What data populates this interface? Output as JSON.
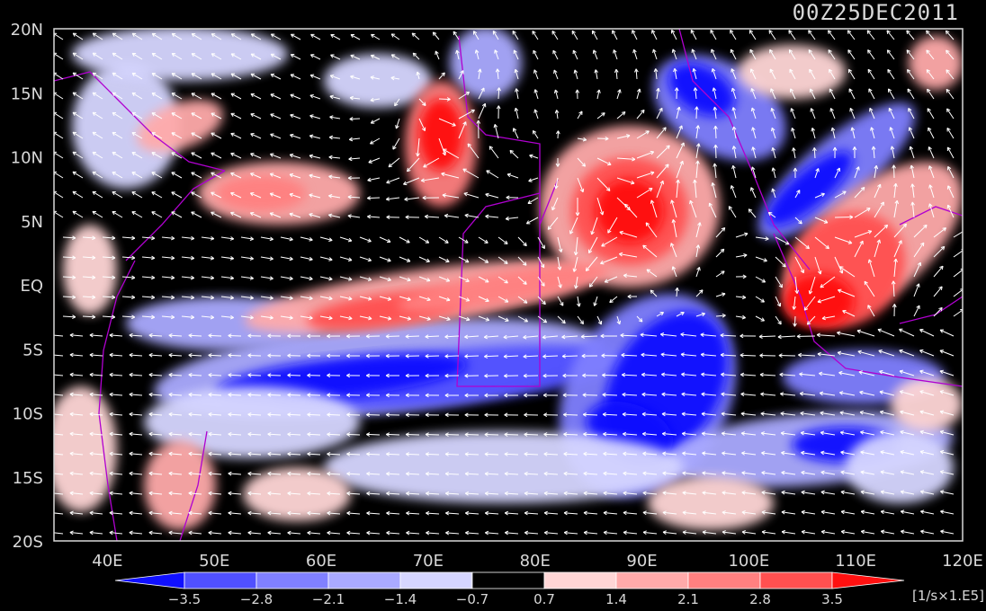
{
  "timestamp": "00Z25DEC2011",
  "units": "[1/s×1.E5]",
  "lon_labels": [
    "40E",
    "50E",
    "60E",
    "70E",
    "80E",
    "90E",
    "100E",
    "110E",
    "120E"
  ],
  "lat_labels": [
    "20N",
    "15N",
    "10N",
    "5N",
    "EQ",
    "5S",
    "10S",
    "15S",
    "20S"
  ],
  "colorbar": {
    "labels": [
      "−3.5",
      "−2.8",
      "−2.1",
      "−1.4",
      "−0.7",
      "0.7",
      "1.4",
      "2.1",
      "2.8",
      "3.5"
    ],
    "colors": [
      "#1010ff",
      "#5050ff",
      "#8080ff",
      "#aaaaff",
      "#d6d6ff",
      "#000000",
      "#ffd6d6",
      "#ffaaaa",
      "#ff8080",
      "#ff5050",
      "#ff1010"
    ]
  },
  "map_data": {
    "type": "vorticity_contour_with_wind_vectors",
    "lon_range": [
      35,
      120
    ],
    "lat_range": [
      -20,
      20
    ],
    "coastline_color": "#b000d0",
    "vector_color": "#ffffff"
  }
}
